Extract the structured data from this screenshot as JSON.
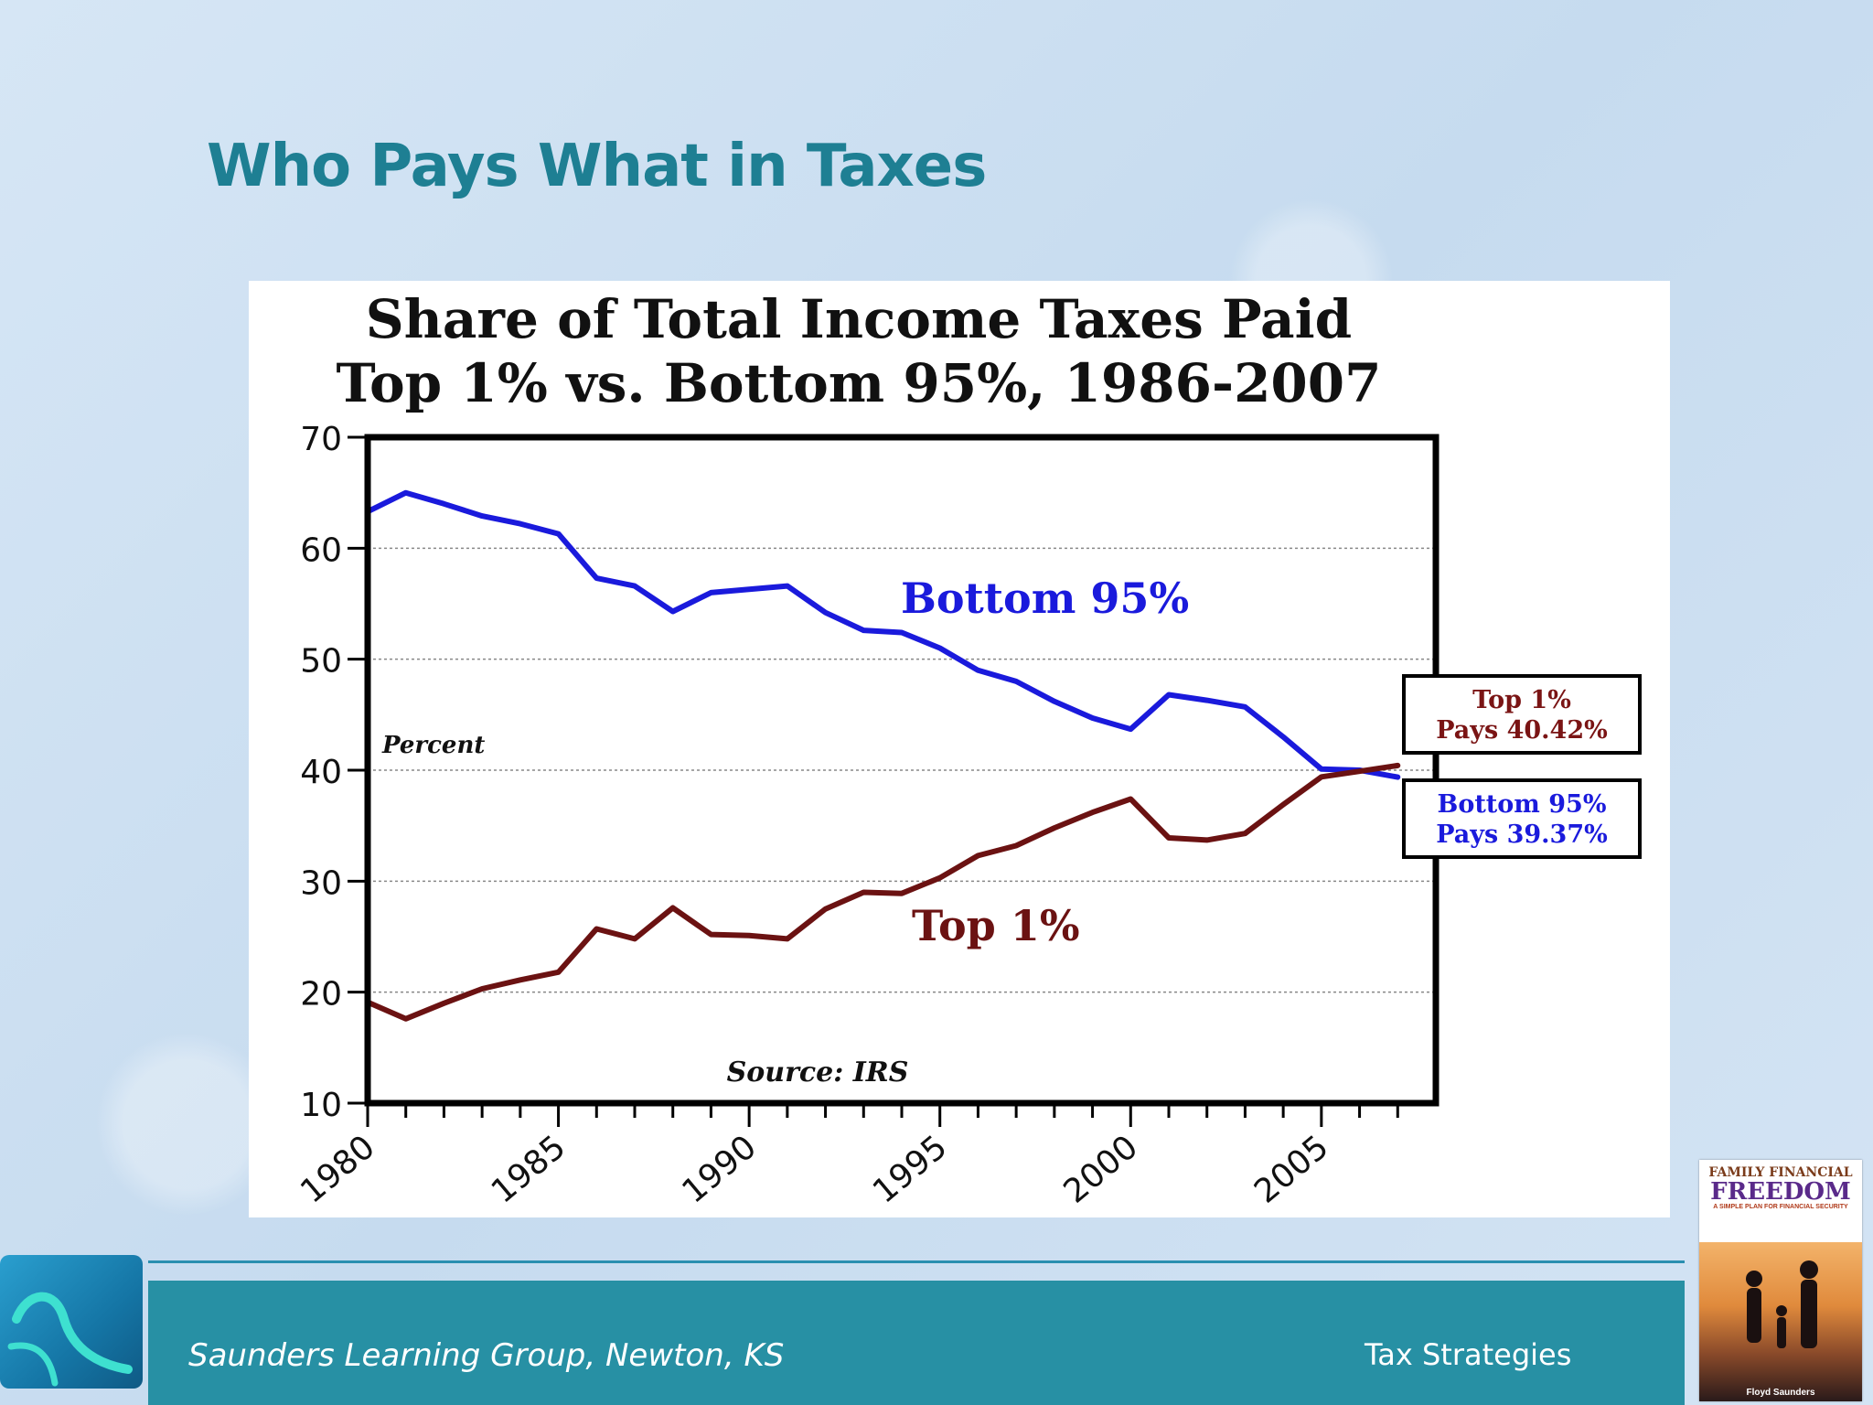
{
  "slide": {
    "title": "Who Pays What in Taxes",
    "footer_left": "Saunders Learning Group, Newton, KS",
    "footer_right": "Tax Strategies"
  },
  "book": {
    "supertitle": "FAMILY FINANCIAL",
    "title": "FREEDOM",
    "subtitle": "A SIMPLE PLAN FOR FINANCIAL SECURITY",
    "author": "Floyd Saunders"
  },
  "chart_data": {
    "type": "line",
    "title_line1": "Share of Total Income Taxes Paid",
    "title_line2": "Top 1% vs. Bottom 95%, 1986-2007",
    "ylabel": "Percent",
    "source": "Source: IRS",
    "ylim": [
      10,
      70
    ],
    "xlim": [
      1980,
      2008
    ],
    "yticks": [
      70,
      60,
      50,
      40,
      30,
      20,
      10
    ],
    "xticks": [
      1980,
      1985,
      1990,
      1995,
      2000,
      2005
    ],
    "grid": true,
    "series": [
      {
        "name": "Bottom 95%",
        "color": "#1a1adc",
        "x": [
          1980,
          1981,
          1982,
          1983,
          1984,
          1985,
          1986,
          1987,
          1988,
          1989,
          1990,
          1991,
          1992,
          1993,
          1994,
          1995,
          1996,
          1997,
          1998,
          1999,
          2000,
          2001,
          2002,
          2003,
          2004,
          2005,
          2006,
          2007
        ],
        "values": [
          63.3,
          65.0,
          64.0,
          62.9,
          62.2,
          61.3,
          57.3,
          56.6,
          54.3,
          56.0,
          56.3,
          56.6,
          54.2,
          52.6,
          52.4,
          51.0,
          49.0,
          48.0,
          46.2,
          44.7,
          43.7,
          46.8,
          46.3,
          45.7,
          43.0,
          40.1,
          40.0,
          39.37
        ]
      },
      {
        "name": "Top 1%",
        "color": "#6b1212",
        "x": [
          1980,
          1981,
          1982,
          1983,
          1984,
          1985,
          1986,
          1987,
          1988,
          1989,
          1990,
          1991,
          1992,
          1993,
          1994,
          1995,
          1996,
          1997,
          1998,
          1999,
          2000,
          2001,
          2002,
          2003,
          2004,
          2005,
          2006,
          2007
        ],
        "values": [
          19.1,
          17.6,
          19.0,
          20.3,
          21.1,
          21.8,
          25.7,
          24.8,
          27.6,
          25.2,
          25.1,
          24.8,
          27.5,
          29.0,
          28.9,
          30.3,
          32.3,
          33.2,
          34.8,
          36.2,
          37.4,
          33.9,
          33.7,
          34.3,
          36.9,
          39.4,
          39.9,
          40.42
        ]
      }
    ],
    "annotations": [
      {
        "text_line1": "Top 1%",
        "text_line2": "Pays 40.42%",
        "color": "#7a1414"
      },
      {
        "text_line1": "Bottom 95%",
        "text_line2": "Pays 39.37%",
        "color": "#1a1adc"
      }
    ]
  }
}
